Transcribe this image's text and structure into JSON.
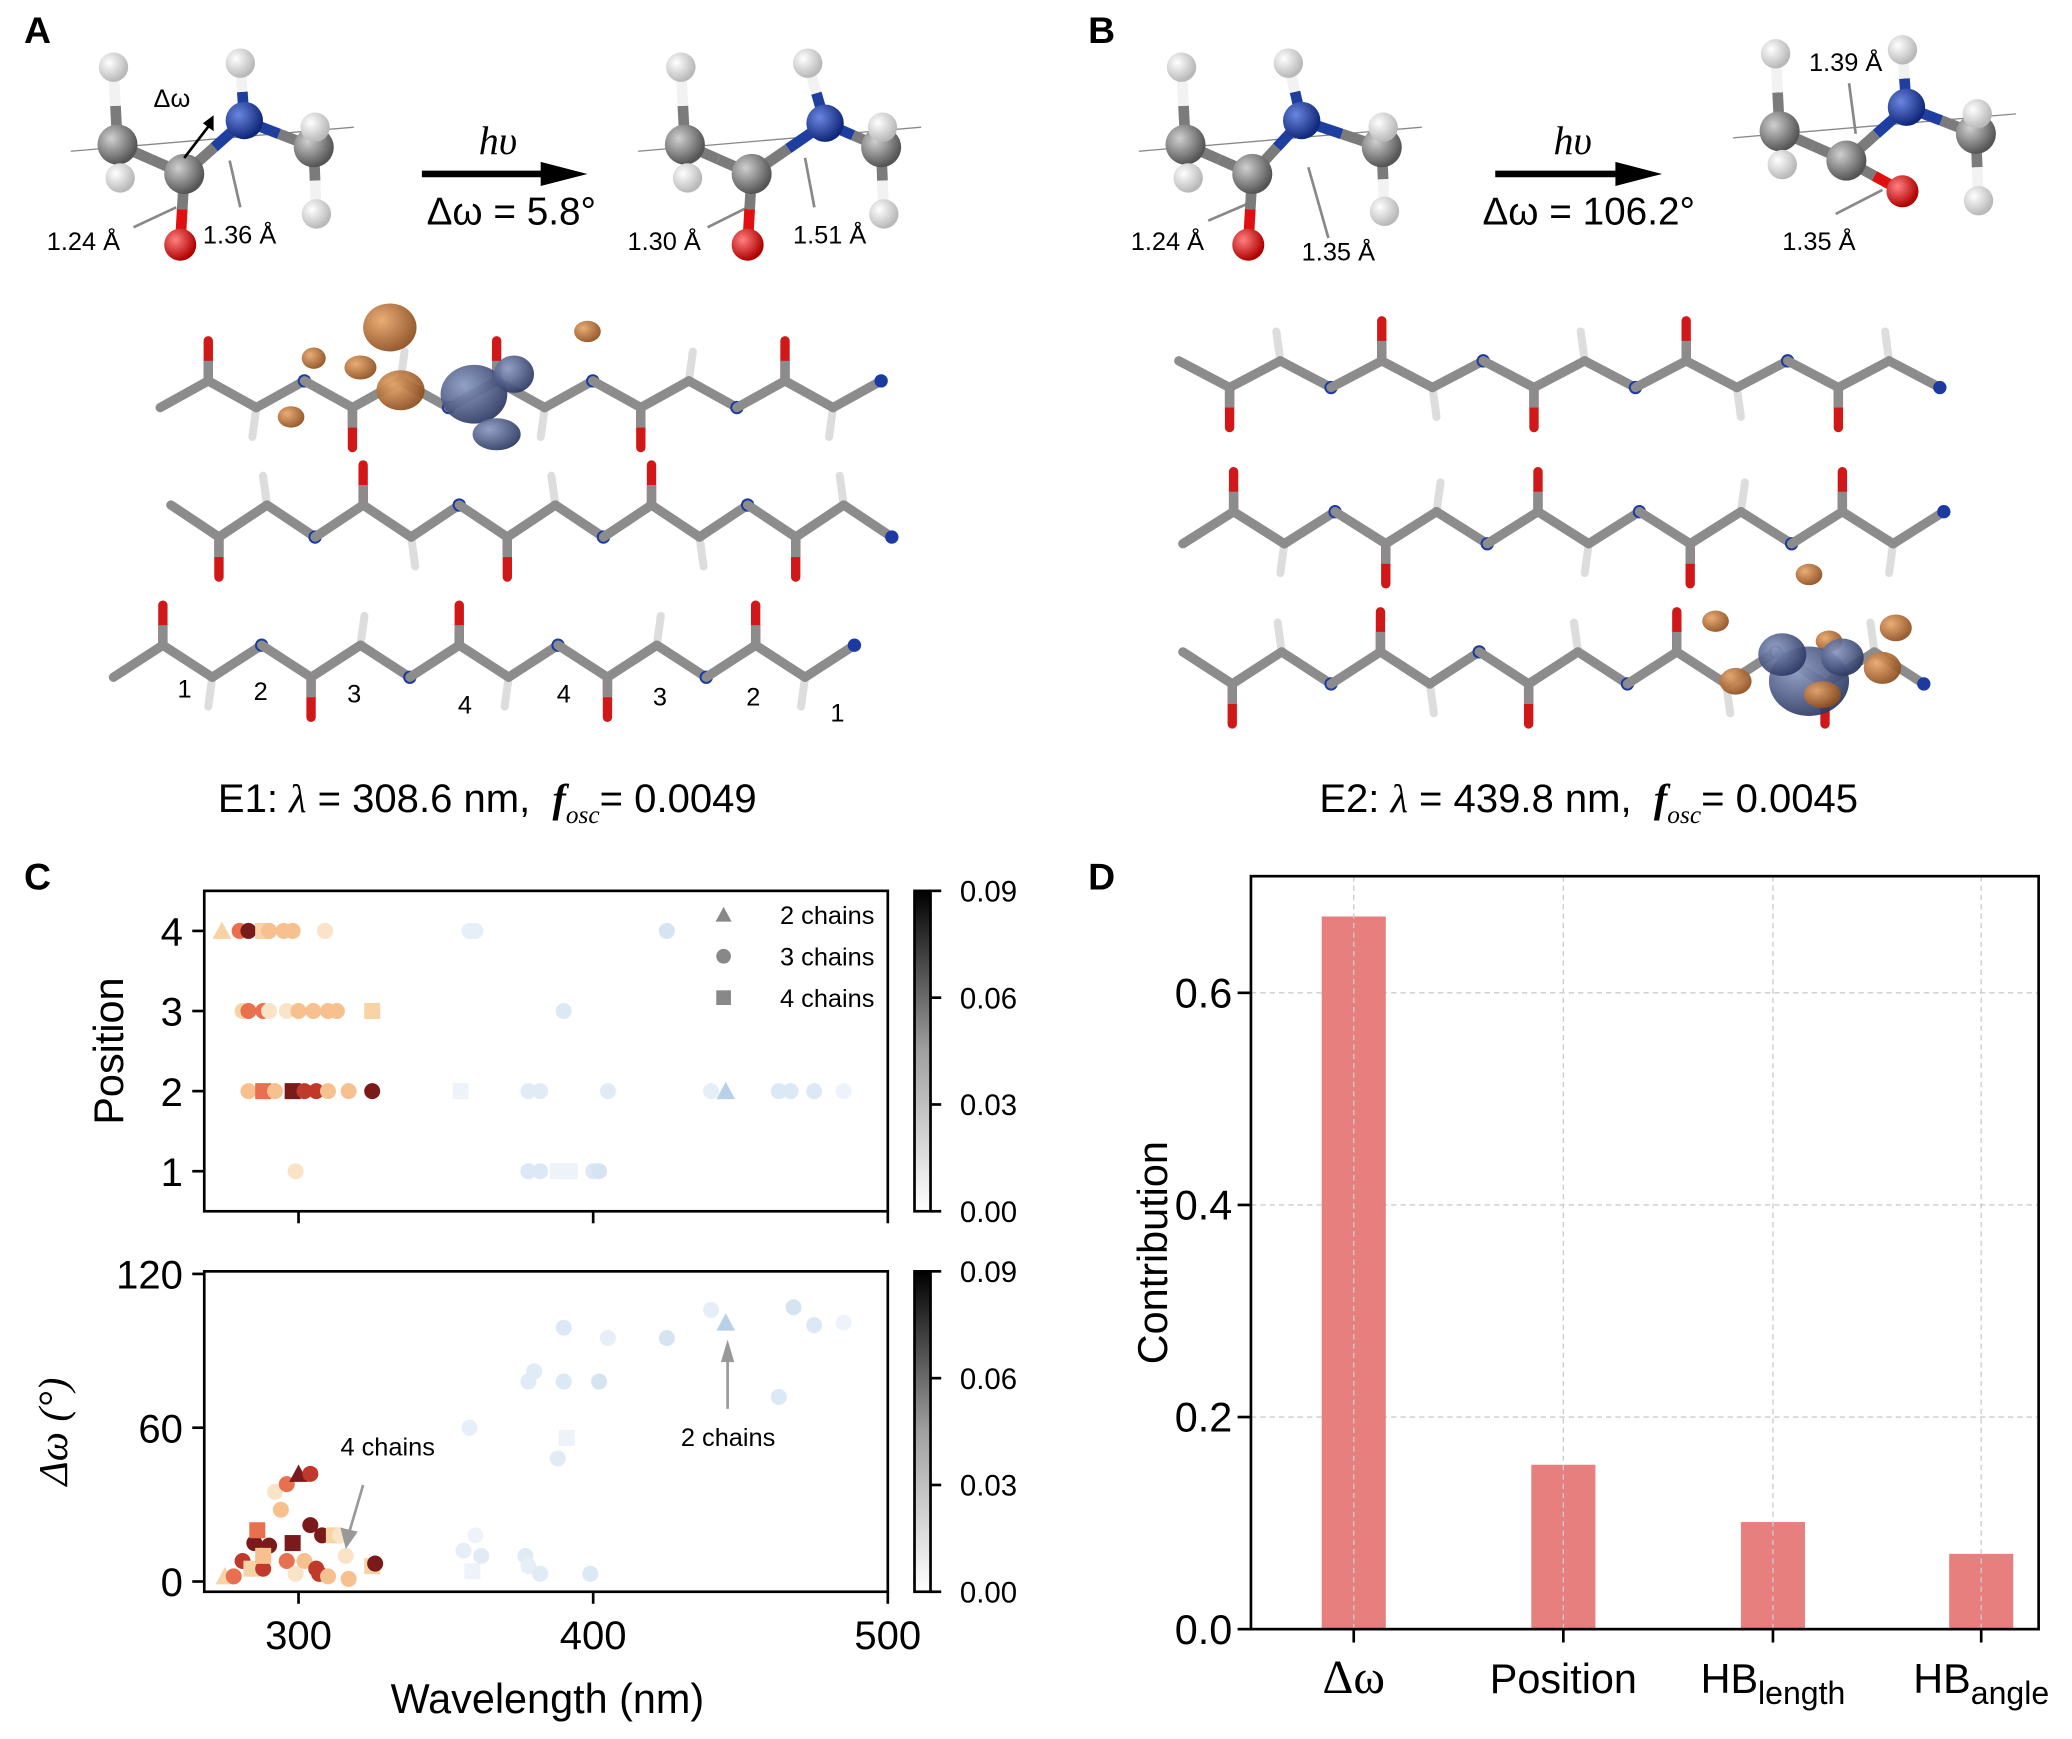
{
  "panels": {
    "A": {
      "label": "A",
      "before": {
        "angle_label": "Δω",
        "bond_co": "1.24 Å",
        "bond_cn": "1.36 Å"
      },
      "arrow": {
        "top": "hυ",
        "bottom": "Δω = 5.8°"
      },
      "after": {
        "bond_co": "1.30 Å",
        "bond_cn": "1.51 Å"
      },
      "chain_numbers": [
        "1",
        "2",
        "3",
        "4",
        "4",
        "3",
        "2",
        "1"
      ],
      "caption": {
        "prefix": "E1: ",
        "lambda": "λ",
        "rest": " = 308.6 nm,  ",
        "f": "f",
        "sub": "osc",
        "value": "= 0.0049"
      }
    },
    "B": {
      "label": "B",
      "before": {
        "bond_co": "1.24 Å",
        "bond_cn": "1.35 Å"
      },
      "arrow": {
        "top": "hυ",
        "bottom": "Δω = 106.2°"
      },
      "after": {
        "bond_top": "1.39 Å",
        "bond_co": "1.35 Å"
      },
      "caption": {
        "prefix": "E2: ",
        "lambda": "λ",
        "rest": " = 439.8 nm,  ",
        "f": "f",
        "sub": "osc",
        "value": "= 0.0045"
      }
    },
    "C": {
      "label": "C"
    },
    "D": {
      "label": "D"
    }
  },
  "colors": {
    "bar": "#e77f7f",
    "carbon": "#7b7b7b",
    "oxygen": "#e01010",
    "nitrogen": "#1f3fa0",
    "hydrogen": "#f2f2f2",
    "orbital_orange": "#c8783a",
    "orbital_blue": "#4a5b8c"
  },
  "chart_data": [
    {
      "type": "scatter",
      "panel": "C-top",
      "xlabel": "",
      "ylabel": "Position",
      "xlim": [
        268,
        500
      ],
      "ylim": [
        0.5,
        4.5
      ],
      "xticks": [
        "300",
        "400",
        "500"
      ],
      "yticks": [
        "1",
        "2",
        "3",
        "4"
      ],
      "legend": {
        "placement": "top-right",
        "entries": [
          {
            "label": "2 chains",
            "marker": "triangle"
          },
          {
            "label": "3 chains",
            "marker": "circle"
          },
          {
            "label": "4 chains",
            "marker": "square"
          }
        ]
      },
      "colorbar": {
        "range": [
          0,
          0.09
        ],
        "ticks": [
          "0.00",
          "0.03",
          "0.06",
          "0.09"
        ],
        "colormap": "grays"
      },
      "points": [
        [
          274,
          4,
          "t",
          "#f8d3a5"
        ],
        [
          280,
          4,
          "c",
          "#e8704e"
        ],
        [
          283,
          4,
          "c",
          "#7a1a1a"
        ],
        [
          288,
          4,
          "s",
          "#f8d3a5"
        ],
        [
          290,
          4,
          "c",
          "#f6c08f"
        ],
        [
          295,
          4,
          "c",
          "#f6c08f"
        ],
        [
          298,
          4,
          "c",
          "#f6c08f"
        ],
        [
          309,
          4,
          "c",
          "#fbe3c8"
        ],
        [
          358,
          4,
          "c",
          "#e6eef8"
        ],
        [
          360,
          4,
          "c",
          "#e6eef8"
        ],
        [
          425,
          4,
          "c",
          "#d6e4f2"
        ],
        [
          281,
          3,
          "c",
          "#f8d3a5"
        ],
        [
          283,
          3,
          "c",
          "#e8704e"
        ],
        [
          288,
          3,
          "c",
          "#e8704e"
        ],
        [
          290,
          3,
          "c",
          "#fbe3c8"
        ],
        [
          296,
          3,
          "c",
          "#fbe3c8"
        ],
        [
          300,
          3,
          "c",
          "#f6c08f"
        ],
        [
          305,
          3,
          "c",
          "#f6c08f"
        ],
        [
          310,
          3,
          "c",
          "#f6c08f"
        ],
        [
          313,
          3,
          "c",
          "#f6c08f"
        ],
        [
          325,
          3,
          "s",
          "#f8d3a5"
        ],
        [
          390,
          3,
          "c",
          "#dce8f5"
        ],
        [
          283,
          2,
          "c",
          "#f6c08f"
        ],
        [
          288,
          2,
          "s",
          "#e8704e"
        ],
        [
          292,
          2,
          "c",
          "#f6c08f"
        ],
        [
          298,
          2,
          "s",
          "#7a1a1a"
        ],
        [
          302,
          2,
          "c",
          "#c0392b"
        ],
        [
          306,
          2,
          "c",
          "#c0392b"
        ],
        [
          310,
          2,
          "c",
          "#f6c08f"
        ],
        [
          317,
          2,
          "c",
          "#f6c08f"
        ],
        [
          325,
          2,
          "c",
          "#7a1a1a"
        ],
        [
          355,
          2,
          "s",
          "#eef3fa"
        ],
        [
          378,
          2,
          "c",
          "#e1ebf6"
        ],
        [
          382,
          2,
          "c",
          "#e1ebf6"
        ],
        [
          405,
          2,
          "c",
          "#e1ebf6"
        ],
        [
          440,
          2,
          "c",
          "#e6eef8"
        ],
        [
          445,
          2,
          "t",
          "#b8d0e8"
        ],
        [
          463,
          2,
          "c",
          "#dce8f5"
        ],
        [
          467,
          2,
          "c",
          "#dce8f5"
        ],
        [
          475,
          2,
          "c",
          "#dce8f5"
        ],
        [
          485,
          2,
          "c",
          "#eef3fa"
        ],
        [
          299,
          1,
          "c",
          "#fbe3c8"
        ],
        [
          378,
          1,
          "c",
          "#dce8f5"
        ],
        [
          382,
          1,
          "c",
          "#dce8f5"
        ],
        [
          388,
          1,
          "s",
          "#eef3fa"
        ],
        [
          392,
          1,
          "s",
          "#eef3fa"
        ],
        [
          400,
          1,
          "c",
          "#dce8f5"
        ],
        [
          402,
          1,
          "c",
          "#d6e4f2"
        ]
      ]
    },
    {
      "type": "scatter",
      "panel": "C-bottom",
      "xlabel": "Wavelength (nm)",
      "ylabel": "Δω (°)",
      "xlim": [
        268,
        500
      ],
      "ylim": [
        -4,
        121
      ],
      "xticks": [
        "300",
        "400",
        "500"
      ],
      "yticks": [
        "0",
        "60",
        "120"
      ],
      "colorbar": {
        "range": [
          0,
          0.09
        ],
        "ticks": [
          "0.00",
          "0.03",
          "0.06",
          "0.09"
        ],
        "colormap": "grays"
      },
      "annotations": [
        {
          "text": "4 chains",
          "points_to": [
            312,
            18
          ]
        },
        {
          "text": "2 chains",
          "points_to": [
            445,
            101
          ]
        }
      ],
      "points": [
        [
          275,
          2,
          "t",
          "#f8d3a5"
        ],
        [
          278,
          2,
          "c",
          "#e8704e"
        ],
        [
          281,
          8,
          "c",
          "#c0392b"
        ],
        [
          285,
          15,
          "c",
          "#7a1a1a"
        ],
        [
          286,
          20,
          "s",
          "#e8704e"
        ],
        [
          284,
          5,
          "s",
          "#f8d3a5"
        ],
        [
          288,
          5,
          "c",
          "#c0392b"
        ],
        [
          290,
          14,
          "c",
          "#7a1a1a"
        ],
        [
          288,
          10,
          "s",
          "#f6c08f"
        ],
        [
          292,
          35,
          "c",
          "#fbe3c8"
        ],
        [
          294,
          28,
          "c",
          "#f6c08f"
        ],
        [
          296,
          38,
          "c",
          "#e8704e"
        ],
        [
          296,
          8,
          "c",
          "#e8704e"
        ],
        [
          298,
          15,
          "s",
          "#7a1a1a"
        ],
        [
          299,
          3,
          "c",
          "#fbe3c8"
        ],
        [
          300,
          42,
          "t",
          "#7a1a1a"
        ],
        [
          302,
          8,
          "c",
          "#f6c08f"
        ],
        [
          304,
          42,
          "c",
          "#c0392b"
        ],
        [
          304,
          22,
          "c",
          "#7a1a1a"
        ],
        [
          306,
          5,
          "c",
          "#c0392b"
        ],
        [
          307,
          3,
          "c",
          "#c0392b"
        ],
        [
          308,
          18,
          "c",
          "#7a1a1a"
        ],
        [
          310,
          2,
          "c",
          "#f6c08f"
        ],
        [
          312,
          18,
          "s",
          "#f8d3a5"
        ],
        [
          314,
          18,
          "c",
          "#fbe3c8"
        ],
        [
          316,
          10,
          "c",
          "#fbe3c8"
        ],
        [
          317,
          1,
          "c",
          "#f6c08f"
        ],
        [
          325,
          6,
          "s",
          "#f8d3a5"
        ],
        [
          326,
          7,
          "c",
          "#7a1a1a"
        ],
        [
          356,
          12,
          "c",
          "#e6eef8"
        ],
        [
          358,
          60,
          "c",
          "#e6eef8"
        ],
        [
          359,
          4,
          "s",
          "#eef3fa"
        ],
        [
          360,
          18,
          "c",
          "#eef3fa"
        ],
        [
          362,
          10,
          "c",
          "#e1ebf6"
        ],
        [
          377,
          10,
          "c",
          "#e1ebf6"
        ],
        [
          378,
          6,
          "c",
          "#e6eef8"
        ],
        [
          382,
          3,
          "c",
          "#e1ebf6"
        ],
        [
          378,
          78,
          "c",
          "#e1ebf6"
        ],
        [
          380,
          82,
          "c",
          "#e1ebf6"
        ],
        [
          390,
          99,
          "c",
          "#dce8f5"
        ],
        [
          390,
          78,
          "c",
          "#dce8f5"
        ],
        [
          388,
          48,
          "c",
          "#e1ebf6"
        ],
        [
          391,
          56,
          "s",
          "#eef3fa"
        ],
        [
          399,
          3,
          "c",
          "#dce8f5"
        ],
        [
          402,
          78,
          "c",
          "#d6e4f2"
        ],
        [
          405,
          95,
          "c",
          "#e6eef8"
        ],
        [
          425,
          95,
          "c",
          "#d6e4f2"
        ],
        [
          440,
          106,
          "c",
          "#e6eef8"
        ],
        [
          445,
          101,
          "t",
          "#b8d0e8"
        ],
        [
          463,
          72,
          "c",
          "#dce8f5"
        ],
        [
          468,
          107,
          "c",
          "#d6e4f2"
        ],
        [
          475,
          100,
          "c",
          "#dce8f5"
        ],
        [
          485,
          101,
          "c",
          "#eef3fa"
        ]
      ]
    },
    {
      "type": "bar",
      "panel": "D",
      "categories": [
        "Δω",
        "Position",
        "HB_length",
        "HB_angle"
      ],
      "category_labels": [
        {
          "main": "Δω",
          "sub": ""
        },
        {
          "main": "Position",
          "sub": ""
        },
        {
          "main": "HB",
          "sub": "length"
        },
        {
          "main": "HB",
          "sub": "angle"
        }
      ],
      "values": [
        0.672,
        0.155,
        0.101,
        0.071
      ],
      "xlabel": "",
      "ylabel": "Contribution",
      "ylim": [
        0,
        0.71
      ],
      "yticks": [
        "0.0",
        "0.2",
        "0.4",
        "0.6"
      ],
      "grid": true
    }
  ]
}
